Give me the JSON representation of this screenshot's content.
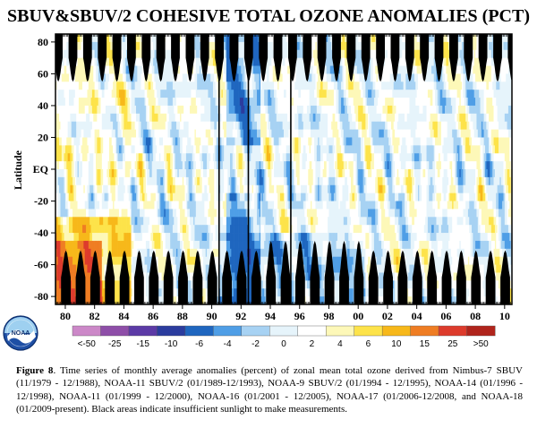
{
  "chart_data": {
    "type": "heatmap",
    "title": "SBUV&SBUV/2 COHESIVE TOTAL OZONE ANOMALIES (PCT)",
    "xlabel": "",
    "ylabel": "Latitude",
    "x_ticks": [
      "80",
      "82",
      "84",
      "86",
      "88",
      "90",
      "92",
      "94",
      "96",
      "98",
      "00",
      "02",
      "04",
      "06",
      "08",
      "10"
    ],
    "x_range": [
      "11/1979",
      "12/2010"
    ],
    "y_ticks": [
      "80",
      "60",
      "40",
      "20",
      "EQ",
      "-20",
      "-40",
      "-60",
      "-80"
    ],
    "y_range": [
      -85,
      85
    ],
    "color_bins": {
      "labels": [
        "<-50",
        "-25",
        "-15",
        "-10",
        "-6",
        "-4",
        "-2",
        "0",
        "2",
        "4",
        "6",
        "10",
        "15",
        "25",
        ">50"
      ],
      "colors": [
        "#cc88c8",
        "#8e4ea8",
        "#5c3aa6",
        "#2b3c9e",
        "#1f66bf",
        "#4f9ee6",
        "#a7d2f3",
        "#e6f4fb",
        "#ffffff",
        "#fdf8b8",
        "#fde34a",
        "#f7b81a",
        "#ef7d23",
        "#dd3b2c",
        "#b0241c"
      ]
    },
    "series_notes": [
      "Nimbus-7 SBUV 11/1979-12/1988",
      "NOAA-11 SBUV/2 01/1989-12/1993",
      "NOAA-9 SBUV/2 01/1994-12/1995",
      "NOAA-14 01/1996-12/1998",
      "NOAA-11 01/1999-12/2000",
      "NOAA-16 01/2001-12/2005",
      "NOAA-17 01/2006-12/2008",
      "NOAA-18 01/2009-present"
    ],
    "legend_placement": "bottom",
    "grid": false
  },
  "logo": {
    "name": "NOAA"
  },
  "caption": {
    "label": "Figure 8",
    "text": ". Time series of monthly average anomalies (percent) of zonal mean total ozone derived from Nimbus-7 SBUV (11/1979 - 12/1988), NOAA-11 SBUV/2 (01/1989-12/1993), NOAA-9 SBUV/2 (01/1994 - 12/1995), NOAA-14 (01/1996 - 12/1998), NOAA-11 (01/1999 - 12/2000), NOAA-16 (01/2001 - 12/2005), NOAA-17 (01/2006-12/2008, and NOAA-18 (01/2009-present). Black areas indicate insufficient sunlight to make measurements."
  }
}
